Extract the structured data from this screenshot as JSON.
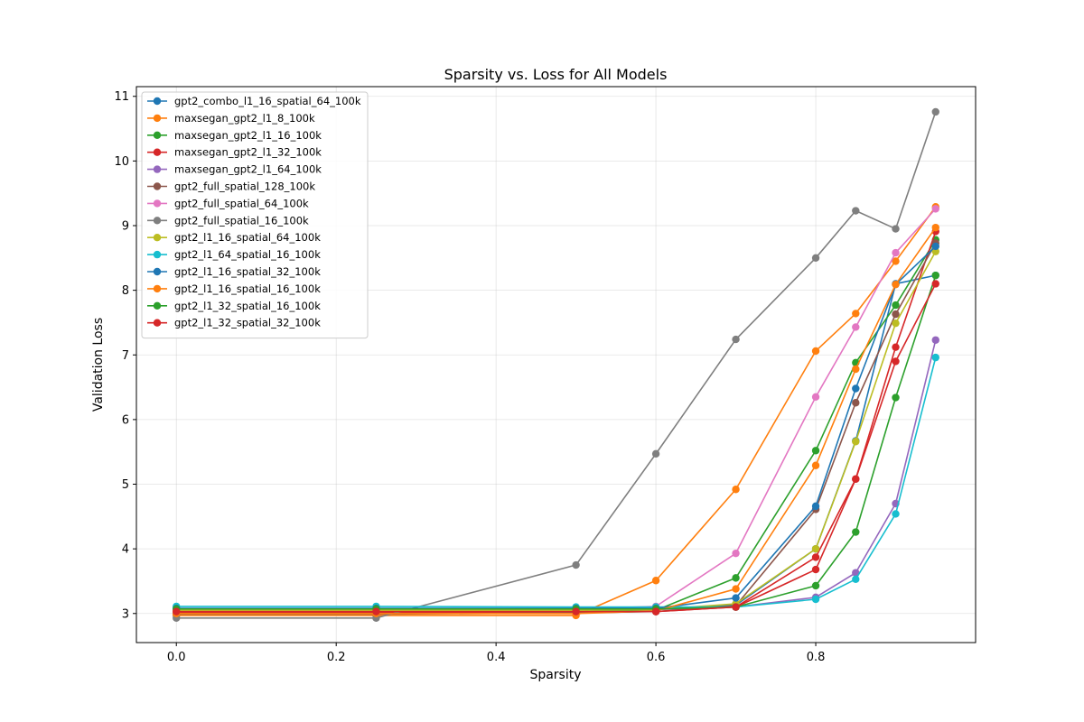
{
  "chart_data": {
    "type": "line",
    "title": "Sparsity vs. Loss for All Models",
    "xlabel": "Sparsity",
    "ylabel": "Validation Loss",
    "xlim": [
      -0.05,
      1.0
    ],
    "ylim": [
      2.55,
      11.15
    ],
    "xticks": [
      0.0,
      0.2,
      0.4,
      0.6,
      0.8
    ],
    "yticks": [
      3,
      4,
      5,
      6,
      7,
      8,
      9,
      10,
      11
    ],
    "grid": true,
    "legend_position": "upper-left",
    "x": [
      0.0,
      0.25,
      0.5,
      0.6,
      0.7,
      0.8,
      0.85,
      0.9,
      0.95
    ],
    "series": [
      {
        "name": "gpt2_combo_l1_16_spatial_64_100k",
        "color": "#1f77b4",
        "values": [
          3.06,
          3.06,
          3.06,
          3.06,
          3.13,
          4.0,
          5.67,
          8.1,
          8.23
        ]
      },
      {
        "name": "maxsegan_gpt2_l1_8_100k",
        "color": "#ff7f0e",
        "values": [
          2.97,
          2.97,
          2.97,
          3.51,
          4.92,
          7.06,
          7.64,
          8.45,
          9.29
        ]
      },
      {
        "name": "maxsegan_gpt2_l1_16_100k",
        "color": "#2ca02c",
        "values": [
          3.02,
          3.02,
          3.03,
          3.05,
          3.55,
          5.52,
          6.88,
          7.77,
          8.78
        ]
      },
      {
        "name": "maxsegan_gpt2_l1_32_100k",
        "color": "#d62728",
        "values": [
          3.02,
          3.02,
          3.02,
          3.03,
          3.1,
          3.87,
          5.08,
          7.12,
          8.91
        ]
      },
      {
        "name": "maxsegan_gpt2_l1_64_100k",
        "color": "#9467bd",
        "values": [
          3.06,
          3.06,
          3.06,
          3.06,
          3.1,
          3.25,
          3.63,
          4.7,
          7.23
        ]
      },
      {
        "name": "gpt2_full_spatial_128_100k",
        "color": "#8c564b",
        "values": [
          2.99,
          2.99,
          3.01,
          3.03,
          3.12,
          4.61,
          6.26,
          7.63,
          8.73
        ]
      },
      {
        "name": "gpt2_full_spatial_64_100k",
        "color": "#e377c2",
        "values": [
          3.04,
          3.04,
          3.07,
          3.11,
          3.93,
          6.35,
          7.43,
          8.58,
          9.26
        ]
      },
      {
        "name": "gpt2_full_spatial_16_100k",
        "color": "#7f7f7f",
        "values": [
          2.93,
          2.93,
          3.75,
          5.47,
          7.24,
          8.5,
          9.23,
          8.95,
          10.76
        ]
      },
      {
        "name": "gpt2_l1_16_spatial_64_100k",
        "color": "#bcbd22",
        "values": [
          3.05,
          3.05,
          3.05,
          3.06,
          3.15,
          4.0,
          5.66,
          7.49,
          8.6
        ]
      },
      {
        "name": "gpt2_l1_64_spatial_16_100k",
        "color": "#17becf",
        "values": [
          3.11,
          3.11,
          3.1,
          3.1,
          3.1,
          3.22,
          3.53,
          4.54,
          6.96
        ]
      },
      {
        "name": "gpt2_l1_16_spatial_32_100k",
        "color": "#1f77b4",
        "values": [
          3.08,
          3.08,
          3.08,
          3.08,
          3.24,
          4.66,
          6.48,
          8.09,
          8.68
        ]
      },
      {
        "name": "gpt2_l1_16_spatial_16_100k",
        "color": "#ff7f0e",
        "values": [
          3.0,
          3.0,
          3.0,
          3.04,
          3.38,
          5.29,
          6.78,
          8.09,
          8.97
        ]
      },
      {
        "name": "gpt2_l1_32_spatial_16_100k",
        "color": "#2ca02c",
        "values": [
          3.07,
          3.07,
          3.07,
          3.07,
          3.1,
          3.43,
          4.26,
          6.34,
          8.23
        ]
      },
      {
        "name": "gpt2_l1_32_spatial_32_100k",
        "color": "#d62728",
        "values": [
          3.03,
          3.03,
          3.03,
          3.03,
          3.1,
          3.68,
          5.08,
          6.9,
          8.1
        ]
      }
    ]
  }
}
